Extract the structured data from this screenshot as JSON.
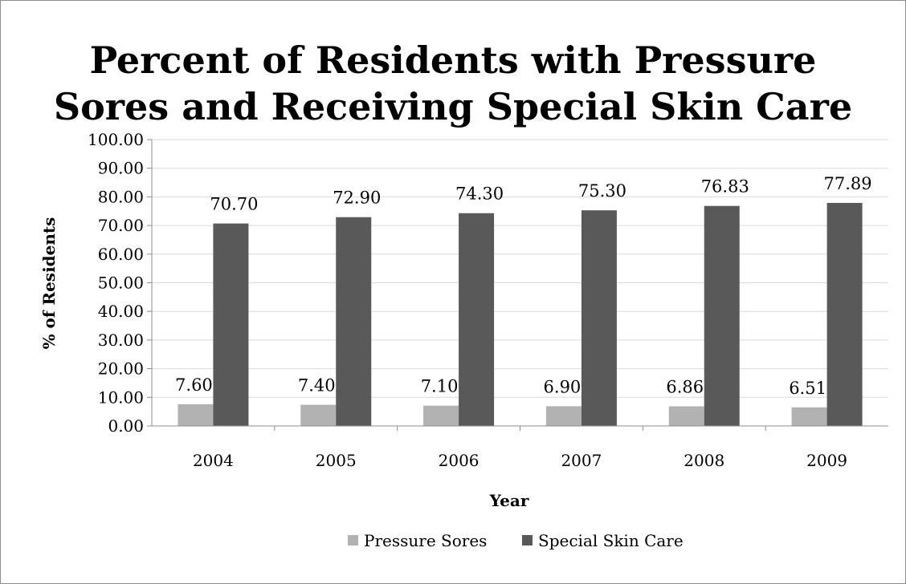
{
  "chart_data": {
    "type": "bar",
    "title_lines": [
      "Percent of Residents with Pressure",
      "Sores and Receiving Special Skin Care"
    ],
    "xlabel": "Year",
    "ylabel": "% of Residents",
    "categories": [
      "2004",
      "2005",
      "2006",
      "2007",
      "2008",
      "2009"
    ],
    "series": [
      {
        "name": "Pressure Sores",
        "values": [
          7.6,
          7.4,
          7.1,
          6.9,
          6.86,
          6.51
        ],
        "labels": [
          "7.60",
          "7.40",
          "7.10",
          "6.90",
          "6.86",
          "6.51"
        ],
        "color": "#b2b2b2"
      },
      {
        "name": "Special Skin Care",
        "values": [
          70.7,
          72.9,
          74.3,
          75.3,
          76.83,
          77.89
        ],
        "labels": [
          "70.70",
          "72.90",
          "74.30",
          "75.30",
          "76.83",
          "77.89"
        ],
        "color": "#595959"
      }
    ],
    "ylim": [
      0,
      100
    ],
    "yticks": [
      "0.00",
      "10.00",
      "20.00",
      "30.00",
      "40.00",
      "50.00",
      "60.00",
      "70.00",
      "80.00",
      "90.00",
      "100.00"
    ],
    "grid": true,
    "gridline_color": "#d9d9d9",
    "legend_position": "bottom"
  }
}
